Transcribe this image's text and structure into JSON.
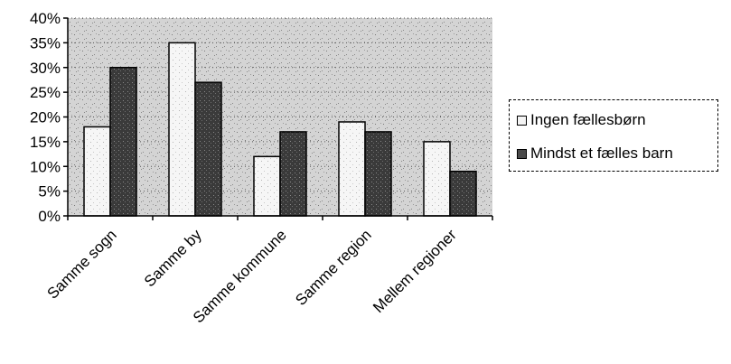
{
  "chart_data": {
    "type": "bar",
    "categories": [
      "Samme sogn",
      "Samme by",
      "Samme kommune",
      "Samme region",
      "Mellem regioner"
    ],
    "series": [
      {
        "name": "Ingen fællesbørn",
        "values": [
          18,
          35,
          12,
          19,
          15
        ],
        "color": "#f4f4f4"
      },
      {
        "name": "Mindst et fælles barn",
        "values": [
          30,
          27,
          17,
          17,
          9
        ],
        "color": "#4a4a4a"
      }
    ],
    "y_ticks": [
      "0%",
      "5%",
      "10%",
      "15%",
      "20%",
      "25%",
      "30%",
      "35%",
      "40%"
    ],
    "ylim": [
      0,
      40
    ],
    "y_unit": "%",
    "grid": "horizontal-dotted",
    "legend_position": "right",
    "plot_background": "#c9c9c9",
    "title": "",
    "xlabel": "",
    "ylabel": ""
  }
}
